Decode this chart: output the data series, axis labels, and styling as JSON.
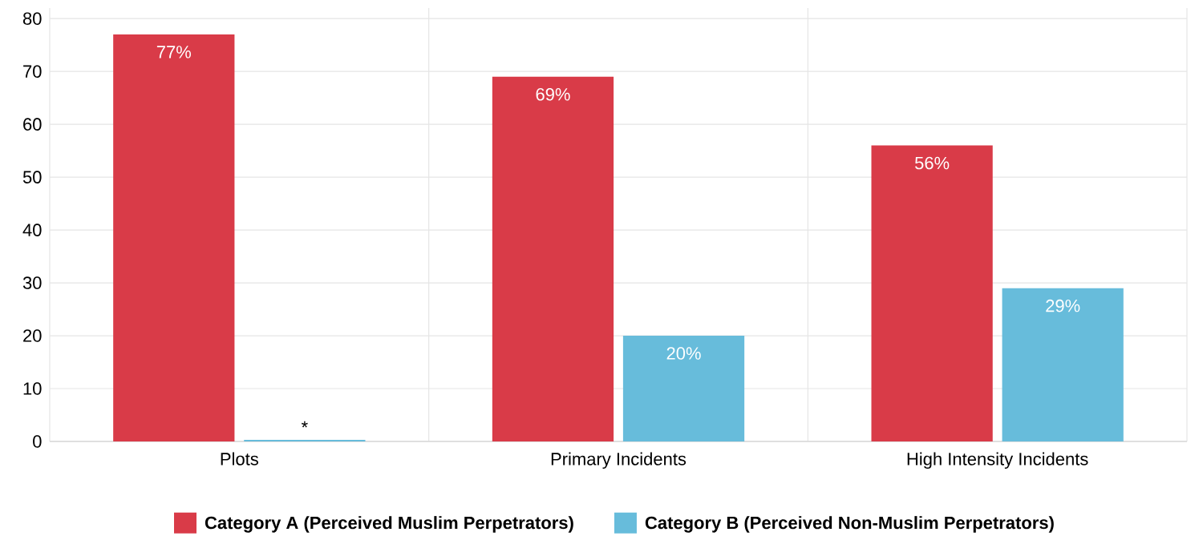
{
  "chart_data": {
    "type": "bar",
    "categories": [
      "Plots",
      "Primary Incidents",
      "High Intensity Incidents"
    ],
    "series": [
      {
        "name": "Category A (Perceived Muslim Perpetrators)",
        "color": "#d93b48",
        "values": [
          77,
          69,
          56
        ],
        "value_labels": [
          "77%",
          "69%",
          "56%"
        ]
      },
      {
        "name": "Category B (Perceived Non-Muslim Perpetrators)",
        "color": "#67bcdb",
        "values": [
          0.3,
          20,
          29
        ],
        "value_labels": [
          "*",
          "20%",
          "29%"
        ]
      }
    ],
    "ylim": [
      0,
      82
    ],
    "yticks": [
      0,
      10,
      20,
      30,
      40,
      50,
      60,
      70,
      80
    ],
    "grid": true,
    "legend": "bottom"
  }
}
